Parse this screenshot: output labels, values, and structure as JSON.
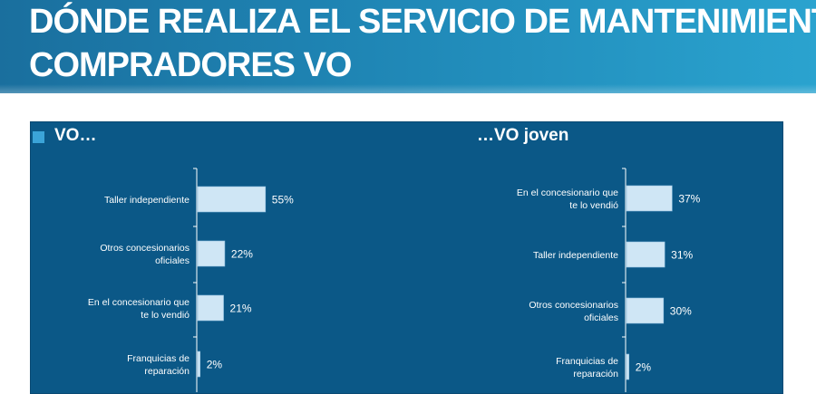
{
  "header": {
    "line1": "DÓNDE REALIZA EL SERVICIO DE MANTENIMIENTO",
    "line2": "COMPRADORES VO"
  },
  "colors": {
    "header_blue": "#1f86b5",
    "panel_blue": "#0b5887",
    "bar_fill": "#cfe6f5",
    "accent_square": "#3ba4d8"
  },
  "chart_data": [
    {
      "type": "bar",
      "orientation": "horizontal",
      "title": "VO…",
      "categories": [
        [
          "Taller independiente"
        ],
        [
          "Otros concesionarios",
          "oficiales"
        ],
        [
          "En el concesionario que",
          "te lo vendió"
        ],
        [
          "Franquicias de",
          "reparación"
        ]
      ],
      "values": [
        55,
        22,
        21,
        2
      ],
      "value_labels": [
        "55%",
        "22%",
        "21%",
        "2%"
      ],
      "xlim": [
        0,
        100
      ]
    },
    {
      "type": "bar",
      "orientation": "horizontal",
      "title": "…VO joven",
      "categories": [
        [
          "En el concesionario que",
          "te lo vendió"
        ],
        [
          "Taller independiente"
        ],
        [
          "Otros concesionarios",
          "oficiales"
        ],
        [
          "Franquicias de",
          "reparación"
        ]
      ],
      "values": [
        37,
        31,
        30,
        2
      ],
      "value_labels": [
        "37%",
        "31%",
        "30%",
        "2%"
      ],
      "xlim": [
        0,
        100
      ]
    }
  ]
}
